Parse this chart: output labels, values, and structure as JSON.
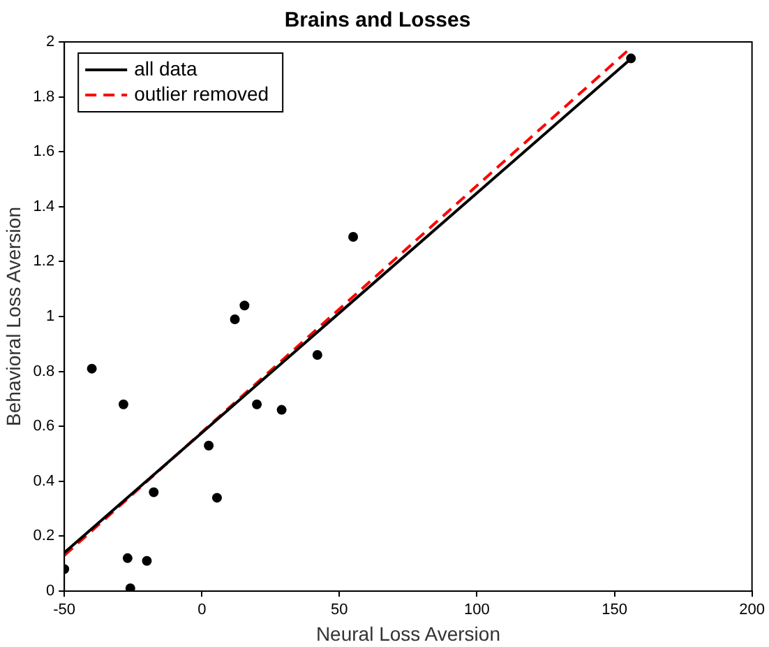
{
  "chart_data": {
    "type": "scatter",
    "title": "Brains and Losses",
    "xlabel": "Neural Loss Aversion",
    "ylabel": "Behavioral Loss Aversion",
    "xlim": [
      -50,
      200
    ],
    "xticks": [
      -50,
      0,
      50,
      100,
      150,
      200
    ],
    "ylim": [
      0,
      2
    ],
    "yticks": [
      0,
      0.2,
      0.4,
      0.6,
      0.8,
      1,
      1.2,
      1.4,
      1.6,
      1.8,
      2
    ],
    "grid": false,
    "legend": "top left",
    "series": [
      {
        "type": "scatter",
        "marker": "circle",
        "color": "#000000",
        "x": [
          -50,
          -40,
          -28.5,
          -27,
          -26,
          -20,
          -17.5,
          2.5,
          5.5,
          12,
          15.5,
          20,
          29,
          42,
          55,
          156
        ],
        "values": [
          0.08,
          0.81,
          0.68,
          0.12,
          0.01,
          0.11,
          0.36,
          0.53,
          0.34,
          0.99,
          1.04,
          0.68,
          0.66,
          0.86,
          1.29,
          1.94
        ]
      },
      {
        "type": "line",
        "name": "all data",
        "color": "#000000",
        "line_style": "solid",
        "x": [
          -50,
          155
        ],
        "values": [
          0.14,
          1.93
        ]
      },
      {
        "type": "line",
        "name": "outlier removed",
        "color": "#ff0000",
        "line_style": "dashed",
        "x": [
          -50,
          155
        ],
        "values": [
          0.13,
          1.97
        ]
      }
    ]
  }
}
